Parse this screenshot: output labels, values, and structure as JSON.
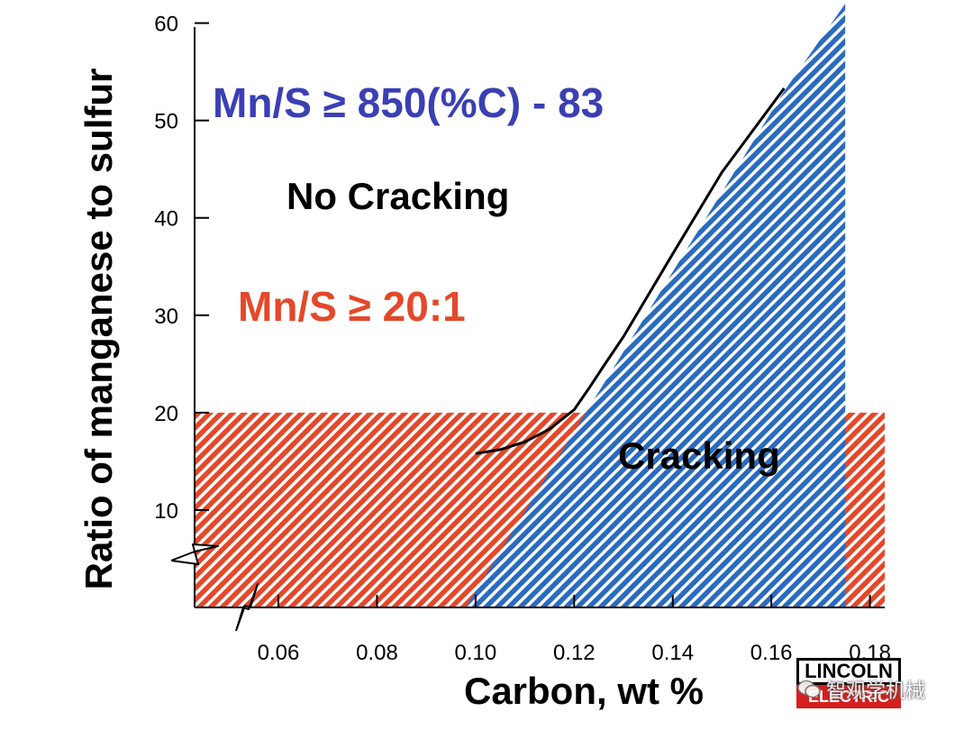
{
  "chart_data": {
    "type": "area",
    "xlabel": "Carbon, wt %",
    "ylabel": "Ratio of manganese to sulfur",
    "x_ticks": [
      "0.06",
      "0.08",
      "0.10",
      "0.12",
      "0.14",
      "0.16",
      "0.18"
    ],
    "y_ticks": [
      "10",
      "20",
      "30",
      "40",
      "50",
      "60"
    ],
    "xlim": [
      0.043,
      0.183
    ],
    "ylim": [
      0,
      62
    ],
    "axis_breaks": {
      "x": true,
      "y": true
    },
    "regions": [
      {
        "label": "Cracking",
        "color": "#2a6bc0",
        "pattern": "diagonal-hatch",
        "boundary": [
          [
            0.098,
            0
          ],
          [
            0.1626,
            53
          ],
          [
            0.175,
            62
          ],
          [
            0.175,
            0
          ]
        ]
      },
      {
        "label": "Mn/S ≥ 20:1 limit",
        "color": "#e4482a",
        "pattern": "diagonal-hatch",
        "y_range": [
          0,
          20
        ],
        "x_range": [
          0.043,
          0.183
        ]
      }
    ],
    "series": [
      {
        "values": [
          [
            0.1,
            15.8
          ],
          [
            0.105,
            16.2
          ],
          [
            0.11,
            17.0
          ],
          [
            0.115,
            18.3
          ],
          [
            0.12,
            20.3
          ],
          [
            0.123,
            22.5
          ],
          [
            0.126,
            24.8
          ],
          [
            0.13,
            27.8
          ],
          [
            0.14,
            36.3
          ],
          [
            0.15,
            44.7
          ],
          [
            0.1626,
            53.3
          ]
        ]
      }
    ],
    "annotations": [
      {
        "text": "Mn/S ≥ 850(%C) - 83",
        "color": "#3a3fb4"
      },
      {
        "text": "No Cracking",
        "color": "#000000"
      },
      {
        "text": "Mn/S ≥ 20:1",
        "color": "#e4482a"
      },
      {
        "text": "Cracking",
        "color": "#000000"
      }
    ]
  },
  "logo": {
    "line1": "LINCOLN",
    "line2": "ELECTRIC"
  },
  "watermark": {
    "text": "智观学机械"
  }
}
